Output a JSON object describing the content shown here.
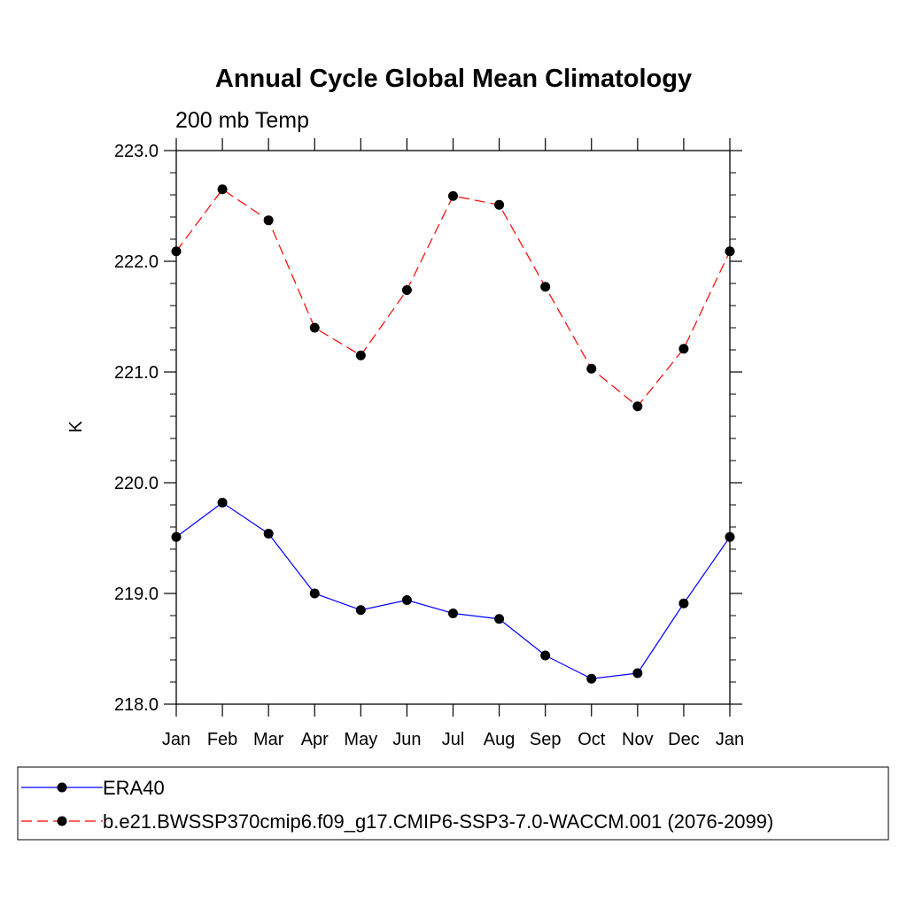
{
  "chart_data": {
    "type": "line",
    "title": "Annual Cycle Global Mean Climatology",
    "subtitle": "200 mb Temp",
    "xlabel": "",
    "ylabel": "K",
    "categories": [
      "Jan",
      "Feb",
      "Mar",
      "Apr",
      "May",
      "Jun",
      "Jul",
      "Aug",
      "Sep",
      "Oct",
      "Nov",
      "Dec",
      "Jan"
    ],
    "ylim": [
      218.0,
      223.0
    ],
    "yticks": [
      "218.0",
      "219.0",
      "220.0",
      "221.0",
      "222.0",
      "223.0"
    ],
    "grid": false,
    "legend_position": "bottom",
    "series": [
      {
        "name": "ERA40",
        "color": "#0000ff",
        "dash": "solid",
        "values": [
          219.51,
          219.82,
          219.54,
          219.0,
          218.85,
          218.94,
          218.82,
          218.77,
          218.44,
          218.23,
          218.28,
          218.91,
          219.51
        ]
      },
      {
        "name": "b.e21.BWSSP370cmip6.f09_g17.CMIP6-SSP3-7.0-WACCM.001 (2076-2099)",
        "color": "#ff0000",
        "dash": "dashed",
        "values": [
          222.09,
          222.65,
          222.37,
          221.4,
          221.15,
          221.74,
          222.59,
          222.51,
          221.77,
          221.03,
          220.69,
          221.21,
          222.09
        ]
      }
    ]
  }
}
